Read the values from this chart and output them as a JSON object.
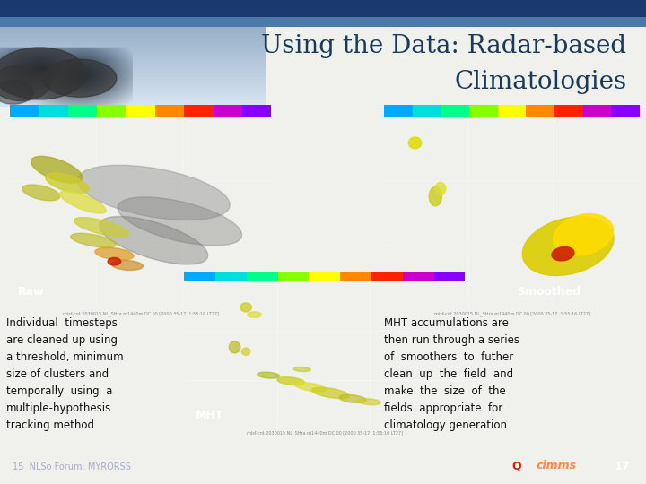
{
  "title_line1": "Using the Data: Radar-based",
  "title_line2": "Climatologies",
  "title_color": "#1a3a5c",
  "title_fontsize": 20,
  "bg_color": "#f0f0ec",
  "footer_bg": "#1a3a6e",
  "footer_text": "15  NLSo Forum: MYRORSS",
  "footer_page": "17",
  "footer_text_color": "#aaaacc",
  "label_raw": "Raw",
  "label_smoothed": "Smoothed",
  "label_mht": "MHT",
  "label_color": "white",
  "label_fontsize": 9,
  "text_left": "Individual  timesteps\nare cleaned up using\na threshold, minimum\nsize of clusters and\ntemporally  using  a\nmultiple-hypothesis\ntracking method",
  "text_right": "MHT accumulations are\nthen run through a series\nof  smoothers  to  futher\nclean  up  the  field  and\nmake  the  size  of  the\nfields  appropriate  for\nclimatology generation",
  "text_fontsize": 8.5,
  "text_color": "#111111",
  "top_bar_color": "#1a3a6e",
  "top_stripe_color": "#4a7aaa"
}
